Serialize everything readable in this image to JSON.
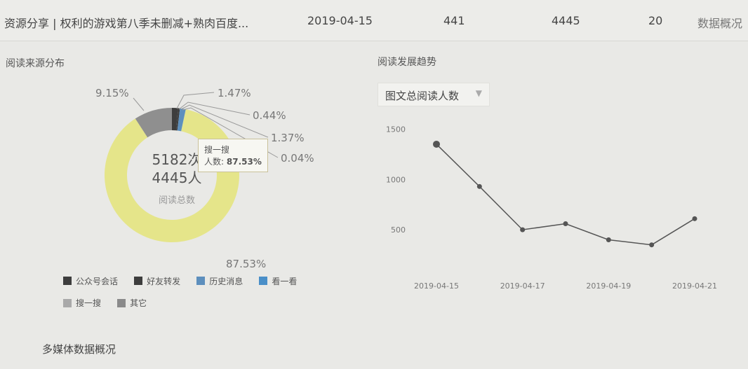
{
  "row": {
    "title": "资源分享 | 权利的游戏第八季未删减+熟肉百度...",
    "date": "2019-04-15",
    "c1": "441",
    "c2": "4445",
    "c3": "20",
    "action": "数据概况"
  },
  "pie_section": {
    "title": "阅读来源分布",
    "center_count": "5182次",
    "center_people": "4445人",
    "center_label": "阅读总数",
    "tooltip": {
      "name": "搜一搜",
      "label": "人数:",
      "value": "87.53%"
    },
    "labels": [
      "9.15%",
      "1.47%",
      "0.44%",
      "1.37%",
      "0.04%",
      "87.53%"
    ]
  },
  "legend": [
    {
      "name": "公众号会话",
      "color": "#3d3d3d"
    },
    {
      "name": "好友转发",
      "color": "#3d3d3d"
    },
    {
      "name": "历史消息",
      "color": "#5d8fbd"
    },
    {
      "name": "看一看",
      "color": "#4a8fc8"
    },
    {
      "name": "搜一搜",
      "color": "#a9a9a9"
    },
    {
      "name": "其它",
      "color": "#8a8a8a"
    }
  ],
  "trend_section": {
    "title": "阅读发展趋势",
    "select_value": "图文总阅读人数"
  },
  "bottom": {
    "title": "多媒体数据概况"
  },
  "chart_data": [
    {
      "type": "pie",
      "categories": [
        "公众号会话",
        "好友转发",
        "历史消息",
        "看一看",
        "搜一搜",
        "其它"
      ],
      "values": [
        1.47,
        0.44,
        1.37,
        0.04,
        87.53,
        9.15
      ],
      "colors": [
        "#3d3d3d",
        "#3d3d3d",
        "#5d8fbd",
        "#4a8fc8",
        "#e5e58a",
        "#8f8f8f"
      ],
      "center_text": [
        "5182次",
        "4445人",
        "阅读总数"
      ]
    },
    {
      "type": "line",
      "x": [
        "2019-04-15",
        "2019-04-16",
        "2019-04-17",
        "2019-04-18",
        "2019-04-19",
        "2019-04-20",
        "2019-04-21"
      ],
      "x_tick_labels": [
        "2019-04-15",
        "2019-04-17",
        "2019-04-19",
        "2019-04-21"
      ],
      "series": [
        {
          "values": [
            1350,
            930,
            500,
            560,
            400,
            350,
            610
          ]
        }
      ],
      "y_ticks": [
        500,
        1000,
        1500
      ],
      "ylim": [
        0,
        1600
      ],
      "color": "#555555"
    }
  ]
}
